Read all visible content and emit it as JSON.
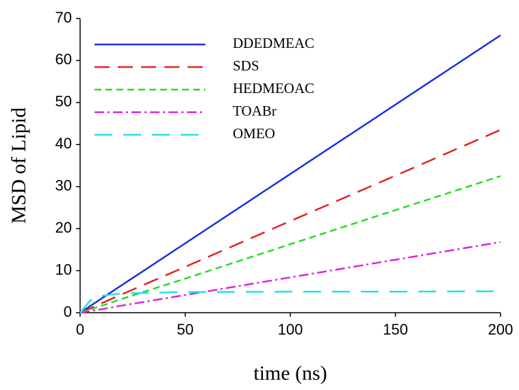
{
  "chart_data": {
    "type": "line",
    "xlabel": "time (ns)",
    "ylabel": "MSD of Lipid",
    "x": [
      0,
      5,
      10,
      20,
      50,
      100,
      150,
      200
    ],
    "xlim": [
      0,
      200
    ],
    "xticks": [
      0,
      50,
      100,
      150,
      200
    ],
    "ylim": [
      0,
      70
    ],
    "yticks": [
      0,
      10,
      20,
      30,
      40,
      50,
      60,
      70
    ],
    "legend": "upper left",
    "series": [
      {
        "name": "DDEDMEAC",
        "color": "#1a2fe0",
        "style": "solid",
        "values": [
          0,
          1.65,
          3.3,
          6.6,
          16.5,
          33,
          49.5,
          66
        ]
      },
      {
        "name": "SDS",
        "color": "#e82020",
        "style": "longdash",
        "values": [
          0,
          1.1,
          2.2,
          4.4,
          10.9,
          21.8,
          32.6,
          43.5
        ]
      },
      {
        "name": "HEDMEOAC",
        "color": "#22dd22",
        "style": "dash",
        "values": [
          0,
          0.8,
          1.6,
          3.3,
          8.1,
          16.3,
          24.4,
          32.5
        ]
      },
      {
        "name": "TOABr",
        "color": "#e020e0",
        "style": "dashdot",
        "values": [
          0,
          0.4,
          0.8,
          1.7,
          4.2,
          8.4,
          12.6,
          16.8
        ]
      },
      {
        "name": "OMEO",
        "color": "#22e0f0",
        "style": "sparsedash",
        "values": [
          0,
          3,
          4,
          4.6,
          4.9,
          5,
          5,
          5.1
        ]
      }
    ]
  }
}
